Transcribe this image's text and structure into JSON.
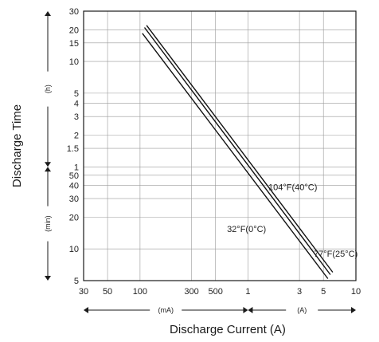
{
  "chart_data": {
    "type": "line",
    "xlabel": "Discharge Current (A)",
    "ylabel": "Discharge Time",
    "x_scale": "log",
    "y_scale": "log",
    "xlim_A": [
      0.03,
      10
    ],
    "x_ticks": [
      {
        "label": "30",
        "value_A": 0.03
      },
      {
        "label": "50",
        "value_A": 0.05
      },
      {
        "label": "100",
        "value_A": 0.1
      },
      {
        "label": "300",
        "value_A": 0.3
      },
      {
        "label": "500",
        "value_A": 0.5
      },
      {
        "label": "1",
        "value_A": 1
      },
      {
        "label": "3",
        "value_A": 3
      },
      {
        "label": "5",
        "value_A": 5
      },
      {
        "label": "10",
        "value_A": 10
      }
    ],
    "x_unit_ranges": [
      {
        "label": "(mA)",
        "from_A": 0.03,
        "to_A": 1
      },
      {
        "label": "(A)",
        "from_A": 1,
        "to_A": 10
      }
    ],
    "y_ticks": [
      {
        "label": "30",
        "value_h": 30
      },
      {
        "label": "20",
        "value_h": 20
      },
      {
        "label": "15",
        "value_h": 15
      },
      {
        "label": "10",
        "value_h": 10
      },
      {
        "label": "5",
        "value_h": 5
      },
      {
        "label": "4",
        "value_h": 4
      },
      {
        "label": "3",
        "value_h": 3
      },
      {
        "label": "2",
        "value_h": 2
      },
      {
        "label": "1.5",
        "value_h": 1.5
      },
      {
        "label": "1",
        "value_h": 1
      },
      {
        "label": "50",
        "value_h": 0.8333
      },
      {
        "label": "40",
        "value_h": 0.6667
      },
      {
        "label": "30",
        "value_h": 0.5
      },
      {
        "label": "20",
        "value_h": 0.3333
      },
      {
        "label": "10",
        "value_h": 0.1667
      },
      {
        "label": "5",
        "value_h": 0.0833
      }
    ],
    "y_unit_ranges": [
      {
        "label": "(h)",
        "from_h": 1,
        "to_h": 30
      },
      {
        "label": "(min)",
        "from_h": 0.0833,
        "to_h": 1
      }
    ],
    "ylim_h": [
      0.0833,
      30
    ],
    "grid": true,
    "series": [
      {
        "name": "104°F(40°C)",
        "points": [
          {
            "x": 0.115,
            "y": 22
          },
          {
            "x": 6.1,
            "y": 0.1
          }
        ]
      },
      {
        "name": "77°F(25°C)",
        "points": [
          {
            "x": 0.11,
            "y": 21
          },
          {
            "x": 5.8,
            "y": 0.095
          }
        ]
      },
      {
        "name": "32°F(0°C)",
        "points": [
          {
            "x": 0.105,
            "y": 18.5
          },
          {
            "x": 5.5,
            "y": 0.087
          }
        ]
      }
    ],
    "series_label_anchor": {
      "104°F(40°C)": {
        "x": 2.6,
        "y": 0.6
      },
      "77°F(25°C)": {
        "x": 6.5,
        "y": 0.14
      },
      "32°F(0°C)": {
        "x": 0.97,
        "y": 0.24
      }
    }
  },
  "colors": {
    "background": "#ffffff",
    "axis": "#1a1a1a",
    "grid": "#9a9a9a",
    "series": "#111111",
    "text": "#222222"
  }
}
